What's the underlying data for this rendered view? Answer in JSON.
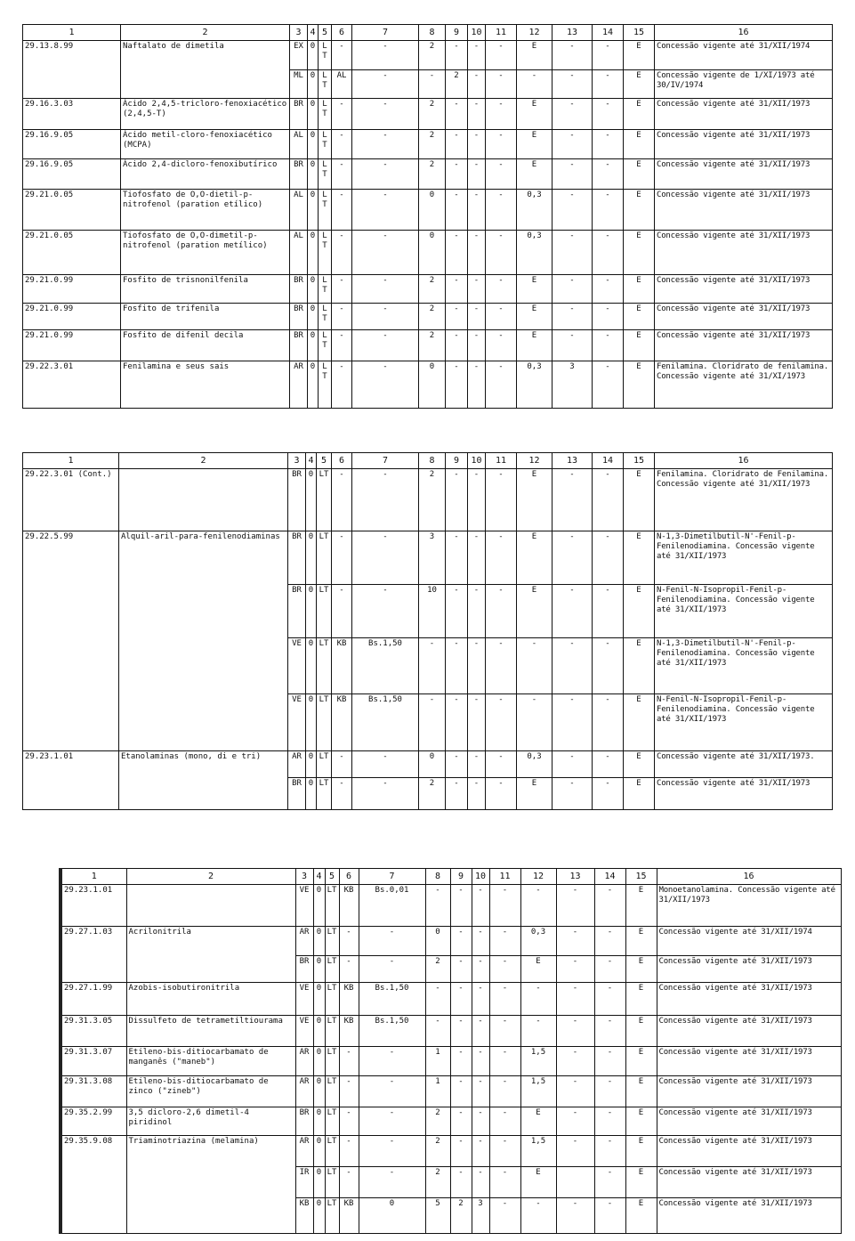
{
  "headers": [
    "1",
    "2",
    "3",
    "4",
    "5",
    "6",
    "7",
    "8",
    "9",
    "10",
    "11",
    "12",
    "13",
    "14",
    "15",
    "16"
  ],
  "tables": [
    {
      "entries": [
        {
          "code": "29.13.8.99",
          "desc": "Naftalato de dimetila",
          "rows": [
            [
              "EX",
              "0",
              "LT",
              "-",
              "-",
              "2",
              "-",
              "-",
              "-",
              "E",
              "-",
              "-",
              "E",
              "Concessão vigente até 31/XII/1974"
            ],
            [
              "ML",
              "0",
              "LT",
              "AL",
              "-",
              "-",
              "2",
              "-",
              "-",
              "-",
              "-",
              "-",
              "E",
              "Concessão vigente de 1/XI/1973 até 30/IV/1974"
            ]
          ]
        },
        {
          "code": "29.16.3.03",
          "desc": "Ácido 2,4,5-tricloro-fenoxiacético (2,4,5-T)",
          "rows": [
            [
              "BR",
              "0",
              "LT",
              "-",
              "-",
              "2",
              "-",
              "-",
              "-",
              "E",
              "-",
              "-",
              "E",
              "Concessão vigente até 31/XII/1973"
            ]
          ]
        },
        {
          "code": "29.16.9.05",
          "desc": "Ácido metil-cloro-fenoxiacético (MCPA)",
          "rows": [
            [
              "AL",
              "0",
              "LT",
              "-",
              "-",
              "2",
              "-",
              "-",
              "-",
              "E",
              "-",
              "-",
              "E",
              "Concessão vigente até 31/XII/1973"
            ]
          ]
        },
        {
          "code": "29.16.9.05",
          "desc": "Ácido 2,4-dicloro-fenoxibutírico",
          "rows": [
            [
              "BR",
              "0",
              "LT",
              "-",
              "-",
              "2",
              "-",
              "-",
              "-",
              "E",
              "-",
              "-",
              "E",
              "Concessão vigente até 31/XII/1973"
            ]
          ]
        },
        {
          "code": "29.21.0.05",
          "desc": "Tiofosfato de O,O-dietil-p-nitrofenol (paration etílico)",
          "rows": [
            [
              "AL",
              "0",
              "LT",
              "-",
              "-",
              "0",
              "-",
              "-",
              "-",
              "0,3",
              "-",
              "-",
              "E",
              "Concessão vigente até 31/XII/1973"
            ]
          ]
        },
        {
          "code": "29.21.0.05",
          "desc": "Tiofosfato de O,O-dimetil-p-nitrofenol (paration metílico)",
          "rows": [
            [
              "AL",
              "0",
              "LT",
              "-",
              "-",
              "0",
              "-",
              "-",
              "-",
              "0,3",
              "-",
              "-",
              "E",
              "Concessão vigente até 31/XII/1973"
            ]
          ]
        },
        {
          "code": "29.21.0.99",
          "desc": "Fosfito de trisnonilfenila",
          "rows": [
            [
              "BR",
              "0",
              "LT",
              "-",
              "-",
              "2",
              "-",
              "-",
              "-",
              "E",
              "-",
              "-",
              "E",
              "Concessão vigente até 31/XII/1973"
            ]
          ]
        },
        {
          "code": "29.21.0.99",
          "desc": "Fosfito de trifenila",
          "rows": [
            [
              "BR",
              "0",
              "LT",
              "-",
              "-",
              "2",
              "-",
              "-",
              "-",
              "E",
              "-",
              "-",
              "E",
              "Concessão vigente até 31/XII/1973"
            ]
          ]
        },
        {
          "code": "29.21.0.99",
          "desc": "Fosfito de difenil decila",
          "rows": [
            [
              "BR",
              "0",
              "LT",
              "-",
              "-",
              "2",
              "-",
              "-",
              "-",
              "E",
              "-",
              "-",
              "E",
              "Concessão vigente até 31/XII/1973"
            ]
          ]
        },
        {
          "code": "29.22.3.01",
          "desc": "Fenilamina e seus sais",
          "rows": [
            [
              "AR",
              "0",
              "LT",
              "-",
              "-",
              "0",
              "-",
              "-",
              "-",
              "0,3",
              "3",
              "-",
              "E",
              "Fenilamina. Cloridrato de fenilamina. Concessão vigente até 31/XI/1973"
            ]
          ]
        }
      ]
    },
    {
      "entries": [
        {
          "code": "29.22.3.01 (Cont.)",
          "desc": "",
          "rows": [
            [
              "BR",
              "0",
              "LT",
              "-",
              "-",
              "2",
              "-",
              "-",
              "-",
              "E",
              "-",
              "-",
              "E",
              "Fenilamina. Cloridrato de Fenilamina. Concessão vigente até 31/XII/1973"
            ]
          ]
        },
        {
          "code": "29.22.5.99",
          "desc": "Alquil-aril-para-fenilenodiaminas",
          "rows": [
            [
              "BR",
              "0",
              "LT",
              "-",
              "-",
              "3",
              "-",
              "-",
              "-",
              "E",
              "-",
              "-",
              "E",
              "N-1,3-Dimetilbutil-N'-Fenil-p-Fenilenodiamina. Concessão vigente até 31/XII/1973"
            ],
            [
              "BR",
              "0",
              "LT",
              "-",
              "-",
              "10",
              "-",
              "-",
              "-",
              "E",
              "-",
              "-",
              "E",
              "N-Fenil-N-Isopropil-Fenil-p-Fenilenodiamina. Concessão vigente até 31/XII/1973"
            ],
            [
              "VE",
              "0",
              "LT",
              "KB",
              "Bs.1,50",
              "-",
              "-",
              "-",
              "-",
              "-",
              "-",
              "-",
              "E",
              "N-1,3-Dimetilbutil-N'-Fenil-p-Fenilenodiamina. Concessão vigente até 31/XII/1973"
            ],
            [
              "VE",
              "0",
              "LT",
              "KB",
              "Bs.1,50",
              "-",
              "-",
              "-",
              "-",
              "-",
              "-",
              "-",
              "E",
              "N-Fenil-N-Isopropil-Fenil-p-Fenilenodiamina. Concessão vigente até 31/XII/1973"
            ]
          ]
        },
        {
          "code": "29.23.1.01",
          "desc": "Etanolaminas (mono, di e tri)",
          "rows": [
            [
              "AR",
              "0",
              "LT",
              "-",
              "-",
              "0",
              "-",
              "-",
              "-",
              "0,3",
              "-",
              "-",
              "E",
              "Concessão vigente até 31/XII/1973."
            ],
            [
              "BR",
              "0",
              "LT",
              "-",
              "-",
              "2",
              "-",
              "-",
              "-",
              "E",
              "-",
              "-",
              "E",
              "Concessão vigente até 31/XII/1973"
            ]
          ]
        }
      ]
    },
    {
      "entries": [
        {
          "code": "29.23.1.01",
          "desc": "",
          "rows": [
            [
              "VE",
              "0",
              "LT",
              "KB",
              "Bs.0,01",
              "-",
              "-",
              "-",
              "-",
              "-",
              "-",
              "-",
              "E",
              "Monoetanolamina. Concessão vigente até 31/XII/1973"
            ]
          ]
        },
        {
          "code": "29.27.1.03",
          "desc": "Acrilonitrila",
          "rows": [
            [
              "AR",
              "0",
              "LT",
              "-",
              "-",
              "0",
              "-",
              "-",
              "-",
              "0,3",
              "-",
              "-",
              "E",
              "Concessão vigente até 31/XII/1974"
            ],
            [
              "BR",
              "0",
              "LT",
              "-",
              "-",
              "2",
              "-",
              "-",
              "-",
              "E",
              "-",
              "-",
              "E",
              "Concessão vigente até 31/XII/1973"
            ]
          ]
        },
        {
          "code": "29.27.1.99",
          "desc": "Azobis-isobutironitrila",
          "rows": [
            [
              "VE",
              "0",
              "LT",
              "KB",
              "Bs.1,50",
              "-",
              "-",
              "-",
              "-",
              "-",
              "-",
              "-",
              "E",
              "Concessão vigente até 31/XII/1973"
            ]
          ]
        },
        {
          "code": "29.31.3.05",
          "desc": "Dissulfeto de tetrametiltiourama",
          "rows": [
            [
              "VE",
              "0",
              "LT",
              "KB",
              "Bs.1,50",
              "-",
              "-",
              "-",
              "-",
              "-",
              "-",
              "-",
              "E",
              "Concessão vigente até 31/XII/1973"
            ]
          ]
        },
        {
          "code": "29.31.3.07",
          "desc": "Etileno-bis-ditiocarbamato de manganês (\"maneb\")",
          "rows": [
            [
              "AR",
              "0",
              "LT",
              "-",
              "-",
              "1",
              "-",
              "-",
              "-",
              "1,5",
              "-",
              "-",
              "E",
              "Concessão vigente até 31/XII/1973"
            ]
          ]
        },
        {
          "code": "29.31.3.08",
          "desc": "Etileno-bis-ditiocarbamato de zinco (\"zineb\")",
          "rows": [
            [
              "AR",
              "0",
              "LT",
              "-",
              "-",
              "1",
              "-",
              "-",
              "-",
              "1,5",
              "-",
              "-",
              "E",
              "Concessão vigente até 31/XII/1973"
            ]
          ]
        },
        {
          "code": "29.35.2.99",
          "desc": "3,5 dicloro-2,6 dimetil-4 piridinol",
          "rows": [
            [
              "BR",
              "0",
              "LT",
              "-",
              "-",
              "2",
              "-",
              "-",
              "-",
              "E",
              "-",
              "-",
              "E",
              "Concessão vigente até 31/XII/1973"
            ]
          ]
        },
        {
          "code": "29.35.9.08",
          "desc": "Triaminotriazina (melamina)",
          "rows": [
            [
              "AR",
              "0",
              "LT",
              "-",
              "-",
              "2",
              "-",
              "-",
              "-",
              "1,5",
              "-",
              "-",
              "E",
              "Concessão vigente até 31/XII/1973"
            ],
            [
              "IR",
              "0",
              "LT",
              "-",
              "-",
              "2",
              "-",
              "-",
              "-",
              "E",
              "",
              "-",
              "E",
              "Concessão vigente até 31/XII/1973"
            ],
            [
              "KB",
              "0",
              "LT",
              "KB",
              "0",
              "5",
              "2",
              "3",
              "-",
              "-",
              "-",
              "-",
              "E",
              "Concessão vigente até 31/XII/1973"
            ]
          ]
        }
      ]
    }
  ]
}
